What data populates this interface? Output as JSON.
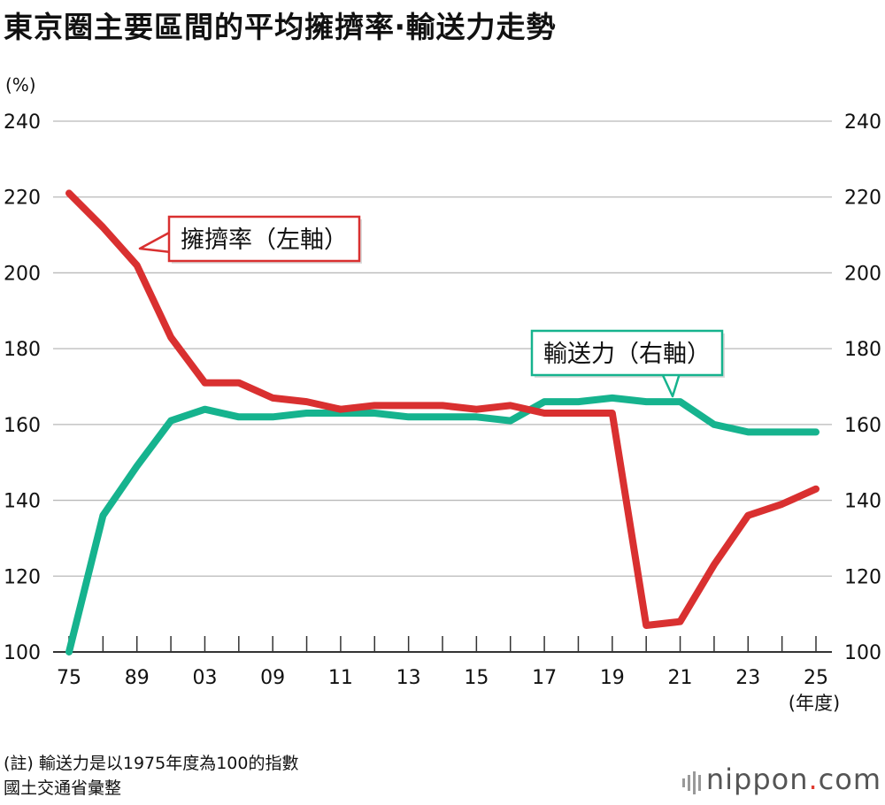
{
  "title": "東京圈主要區間的平均擁擠率‧輸送力走勢",
  "unit_left": "(%)",
  "x_unit": "(年度)",
  "note": "(註) 輸送力是以1975年度為100的指數",
  "source": "國土交通省彙整",
  "logo": {
    "brand": "nippon",
    "dot": ".",
    "suffix": "com"
  },
  "colors": {
    "congestion": "#d93030",
    "capacity": "#16b38e",
    "grid": "#b9b9b9",
    "axis": "#333333"
  },
  "chart_data": {
    "type": "line",
    "title": "東京圈主要區間的平均擁擠率‧輸送力走勢",
    "ylabel": "(%)",
    "xlabel": "(年度)",
    "ylim": [
      100,
      240
    ],
    "yticks": [
      100,
      120,
      140,
      160,
      180,
      200,
      220,
      240
    ],
    "grid": true,
    "x": [
      "75",
      "85",
      "89",
      "95",
      "03",
      "06",
      "09",
      "10",
      "11",
      "12",
      "13",
      "14",
      "15",
      "16",
      "17",
      "18",
      "19",
      "20",
      "21",
      "22",
      "23",
      "24",
      "25"
    ],
    "xtick_labels": [
      "75",
      "89",
      "03",
      "09",
      "11",
      "13",
      "15",
      "17",
      "19",
      "21",
      "23",
      "25"
    ],
    "series": [
      {
        "name": "擁擠率（左軸）",
        "axis": "left",
        "values": [
          221,
          212,
          202,
          183,
          171,
          171,
          167,
          166,
          164,
          165,
          165,
          165,
          164,
          165,
          163,
          163,
          163,
          107,
          108,
          123,
          136,
          139,
          143
        ]
      },
      {
        "name": "輸送力（右軸）",
        "axis": "right",
        "values": [
          100,
          136,
          149,
          161,
          164,
          162,
          162,
          163,
          163,
          163,
          162,
          162,
          162,
          161,
          166,
          166,
          167,
          166,
          166,
          160,
          158,
          158,
          158
        ]
      }
    ]
  }
}
